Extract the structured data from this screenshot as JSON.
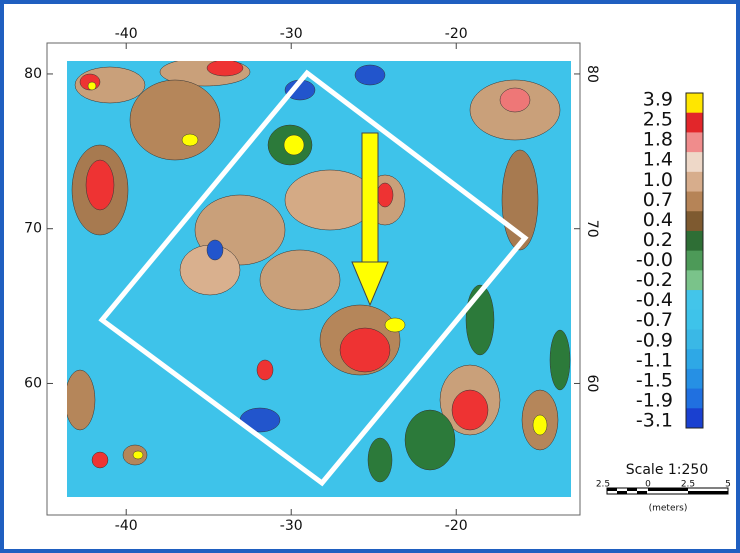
{
  "map": {
    "xlim": [
      -44.8,
      -12.5
    ],
    "ylim": [
      51.5,
      82
    ],
    "xticks": [
      -40,
      -30,
      -20
    ],
    "yticks": [
      60,
      70,
      80
    ]
  },
  "colorbar": {
    "labels": [
      "3.9",
      "2.5",
      "1.8",
      "1.4",
      "1.0",
      "0.7",
      "0.4",
      "0.2",
      "-0.0",
      "-0.2",
      "-0.4",
      "-0.7",
      "-0.9",
      "-1.1",
      "-1.5",
      "-1.9",
      "-3.1"
    ]
  },
  "scale_bar": {
    "title": "Scale 1:250",
    "labels": [
      "2.5",
      "0",
      "2.5",
      "5"
    ],
    "unit": "(meters)"
  }
}
